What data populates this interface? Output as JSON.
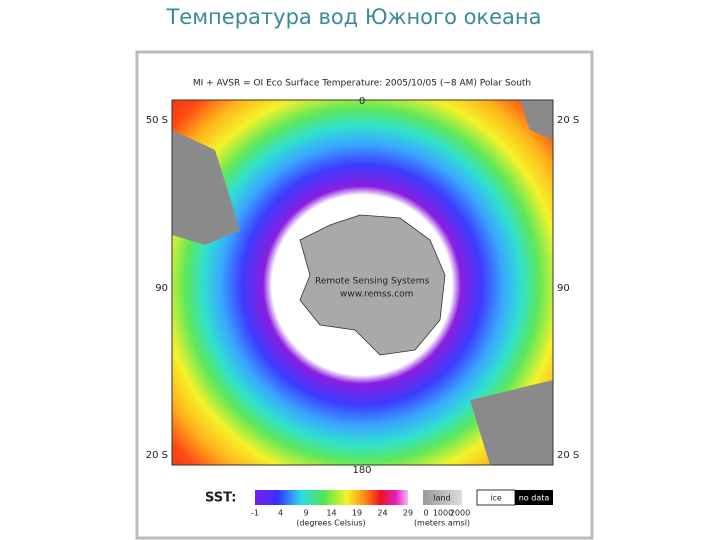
{
  "header": {
    "title": "Температура вод Южного океана"
  },
  "map": {
    "title": "MI + AVSR = OI Eco Surface Temperature: 2005/10/05 (~8 AM) Polar South",
    "labels": [
      "0",
      "50 S",
      "20 S",
      "90",
      "90",
      "20 S",
      "20 S",
      "180"
    ],
    "credit": [
      "Remote Sensing Systems",
      "www.remss.com"
    ]
  },
  "legend": {
    "sst_label": "SST:",
    "sst_ticks": [
      -1,
      4,
      9,
      14,
      19,
      24,
      29
    ],
    "sst_unit": "(degrees Celsius)",
    "land_label": "land",
    "land_ticks": [
      0,
      1000,
      2000
    ],
    "land_unit": "(meters amsl)",
    "ice_label": "ice",
    "nodata_label": "no data"
  }
}
